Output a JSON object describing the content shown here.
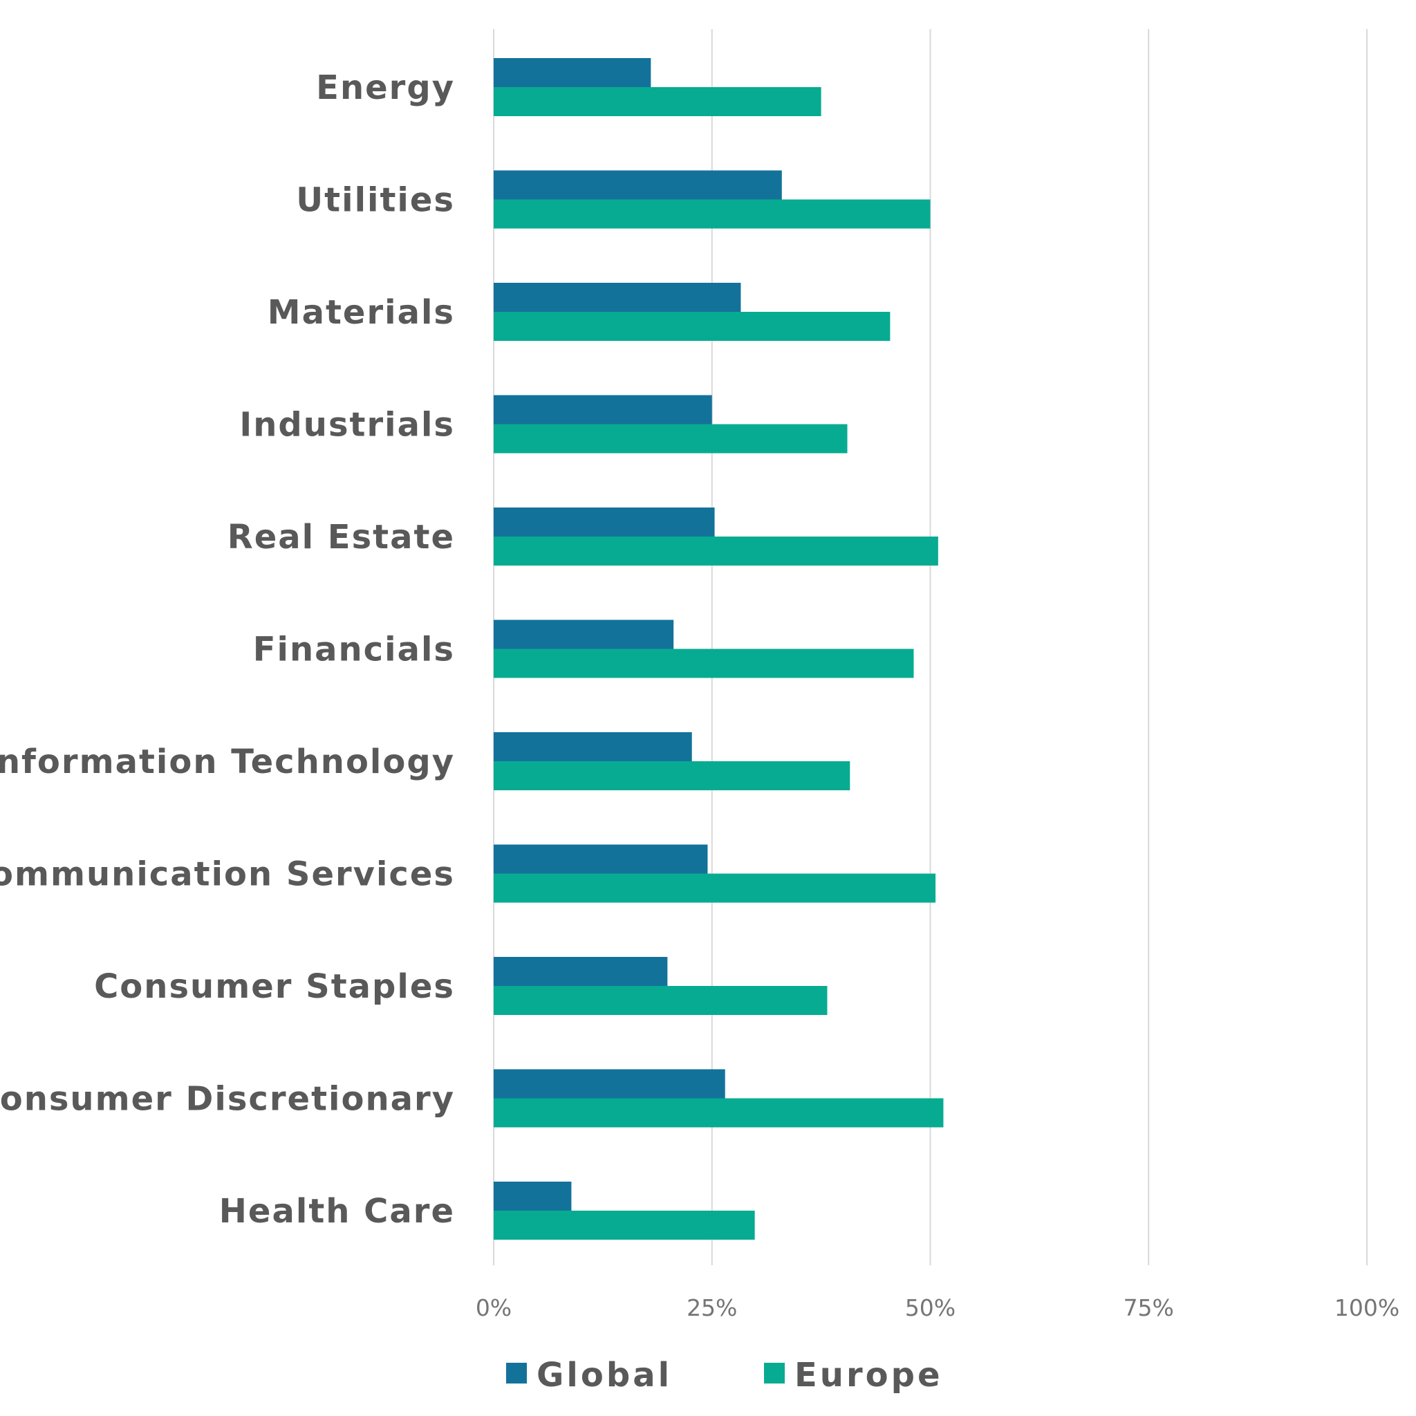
{
  "chart_data": {
    "type": "bar",
    "orientation": "horizontal",
    "title": "",
    "xlabel": "",
    "ylabel": "",
    "categories": [
      "Energy",
      "Utilities",
      "Materials",
      "Industrials",
      "Real Estate",
      "Financials",
      "Information Technology",
      "Communication Services",
      "Consumer Staples",
      "Consumer Discretionary",
      "Health Care"
    ],
    "series": [
      {
        "name": "Global",
        "color": "#13729a",
        "values": [
          18,
          33,
          28.3,
          25,
          25.3,
          20.6,
          22.7,
          24.5,
          19.9,
          26.5,
          8.9
        ]
      },
      {
        "name": "Europe",
        "color": "#07ab92",
        "values": [
          37.5,
          50,
          45.4,
          40.5,
          50.9,
          48.1,
          40.8,
          50.6,
          38.2,
          51.5,
          29.9
        ]
      }
    ],
    "xlim": [
      0,
      100
    ],
    "xticks": [
      0,
      25,
      50,
      75,
      100
    ],
    "xtick_labels": [
      "0%",
      "25%",
      "50%",
      "75%",
      "100%"
    ],
    "grid": true,
    "legend_position": "bottom"
  }
}
